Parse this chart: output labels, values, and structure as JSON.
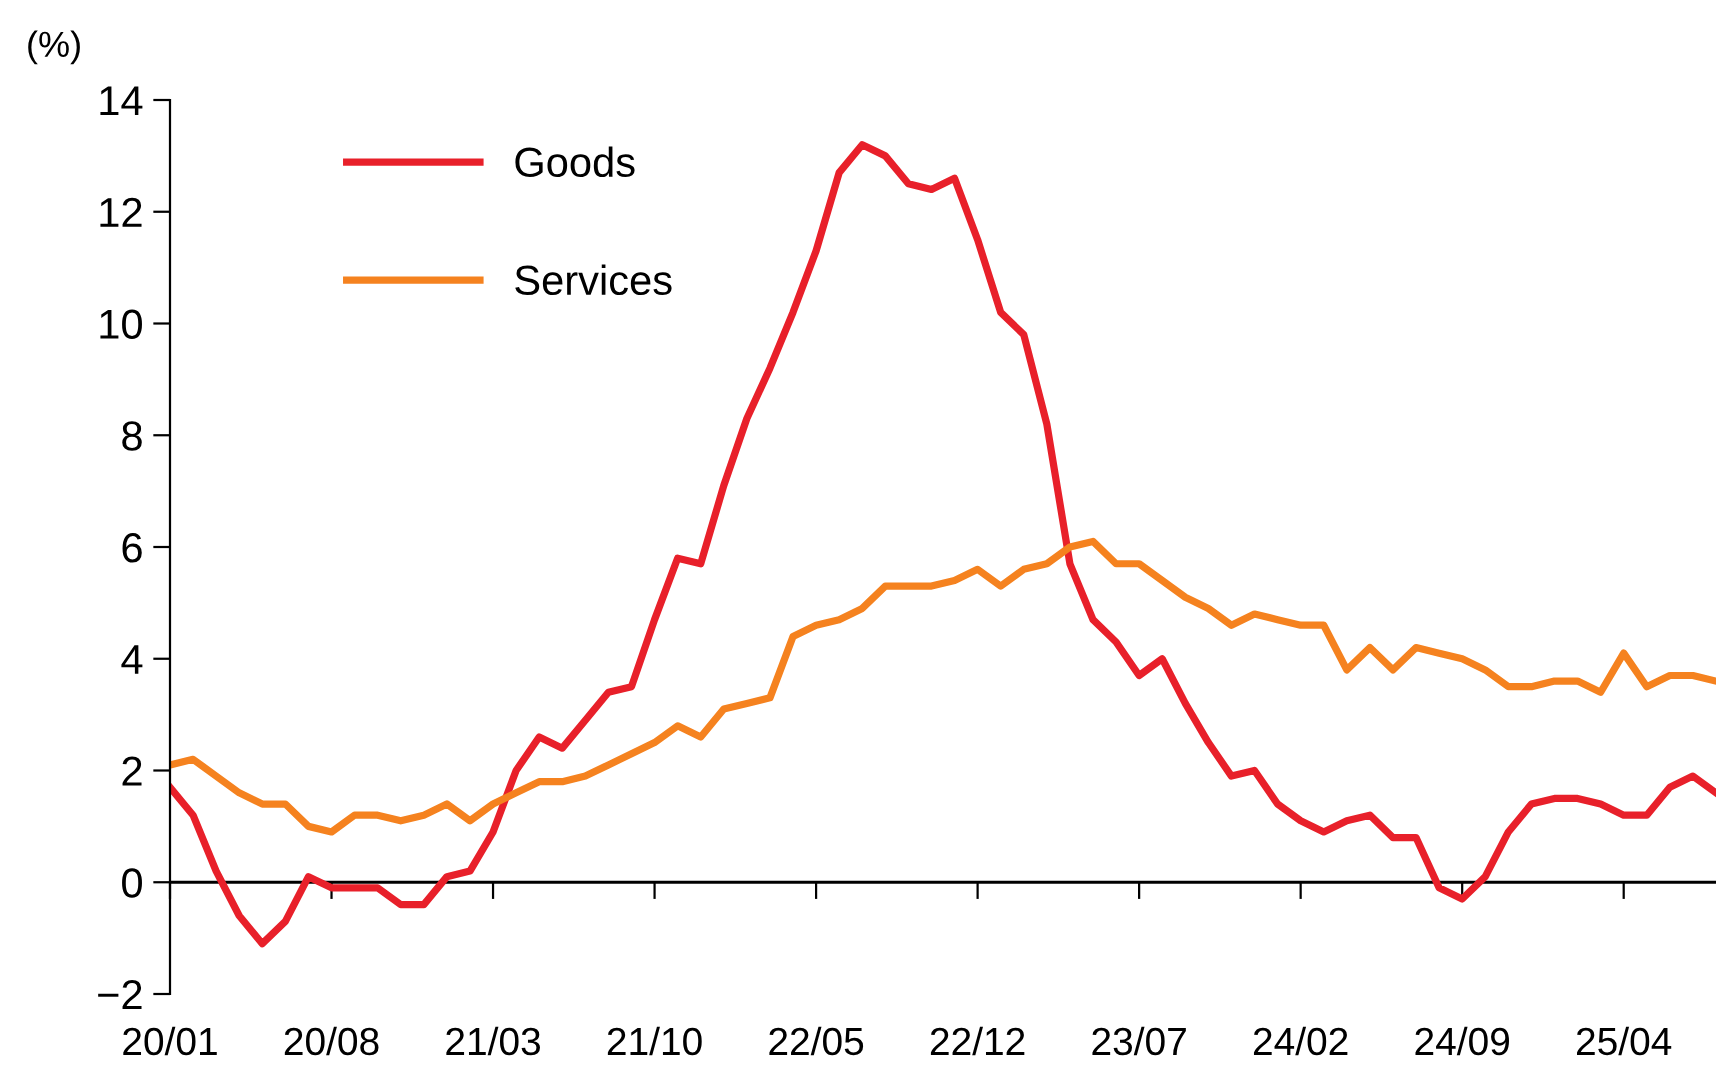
{
  "chart_data": {
    "type": "line",
    "ylabel": "(%)",
    "categories": [
      "20/01",
      null,
      null,
      null,
      null,
      null,
      null,
      "20/08",
      null,
      null,
      null,
      null,
      null,
      null,
      "21/03",
      null,
      null,
      null,
      null,
      null,
      null,
      "21/10",
      null,
      null,
      null,
      null,
      null,
      null,
      "22/05",
      null,
      null,
      null,
      null,
      null,
      null,
      "22/12",
      null,
      null,
      null,
      null,
      null,
      null,
      "23/07",
      null,
      null,
      null,
      null,
      null,
      null,
      "24/02",
      null,
      null,
      null,
      null,
      null,
      null,
      "24/09",
      null,
      null,
      null,
      null,
      null,
      null,
      "25/04",
      null,
      null,
      null,
      null
    ],
    "series": [
      {
        "name": "Goods",
        "color": "#e8202a",
        "values": [
          1.7,
          1.2,
          0.2,
          -0.6,
          -1.1,
          -0.7,
          0.1,
          -0.1,
          -0.1,
          -0.1,
          -0.4,
          -0.4,
          0.1,
          0.2,
          0.9,
          2.0,
          2.6,
          2.4,
          2.9,
          3.4,
          3.5,
          4.7,
          5.8,
          5.7,
          7.1,
          8.3,
          9.2,
          10.2,
          11.3,
          12.7,
          13.2,
          13.0,
          12.5,
          12.4,
          12.6,
          11.5,
          10.2,
          9.8,
          8.2,
          5.7,
          4.7,
          4.3,
          3.7,
          4.0,
          3.2,
          2.5,
          1.9,
          2.0,
          1.4,
          1.1,
          0.9,
          1.1,
          1.2,
          0.8,
          0.8,
          -0.1,
          -0.3,
          0.1,
          0.9,
          1.4,
          1.5,
          1.5,
          1.4,
          1.2,
          1.2,
          1.7,
          1.9,
          1.6
        ]
      },
      {
        "name": "Services",
        "color": "#f5821f",
        "values": [
          2.1,
          2.2,
          1.9,
          1.6,
          1.4,
          1.4,
          1.0,
          0.9,
          1.2,
          1.2,
          1.1,
          1.2,
          1.4,
          1.1,
          1.4,
          1.6,
          1.8,
          1.8,
          1.9,
          2.1,
          2.3,
          2.5,
          2.8,
          2.6,
          3.1,
          3.2,
          3.3,
          4.4,
          4.6,
          4.7,
          4.9,
          5.3,
          5.3,
          5.3,
          5.4,
          5.6,
          5.3,
          5.6,
          5.7,
          6.0,
          6.1,
          5.7,
          5.7,
          5.4,
          5.1,
          4.9,
          4.6,
          4.8,
          4.7,
          4.6,
          4.6,
          3.8,
          4.2,
          3.8,
          4.2,
          4.1,
          4.0,
          3.8,
          3.5,
          3.5,
          3.6,
          3.6,
          3.4,
          4.1,
          3.5,
          3.7,
          3.7,
          3.6
        ]
      }
    ],
    "ylim": [
      -2,
      14
    ],
    "yticks": [
      {
        "value": -2,
        "label": "−2"
      },
      0,
      2,
      4,
      6,
      8,
      10,
      12,
      14
    ],
    "ref_lines": [
      {
        "axis": "y",
        "value": 0,
        "color": "#000000",
        "line_style": "solid"
      }
    ],
    "grid": false,
    "legend": "top left",
    "marker": "none",
    "line_style": "solid"
  }
}
